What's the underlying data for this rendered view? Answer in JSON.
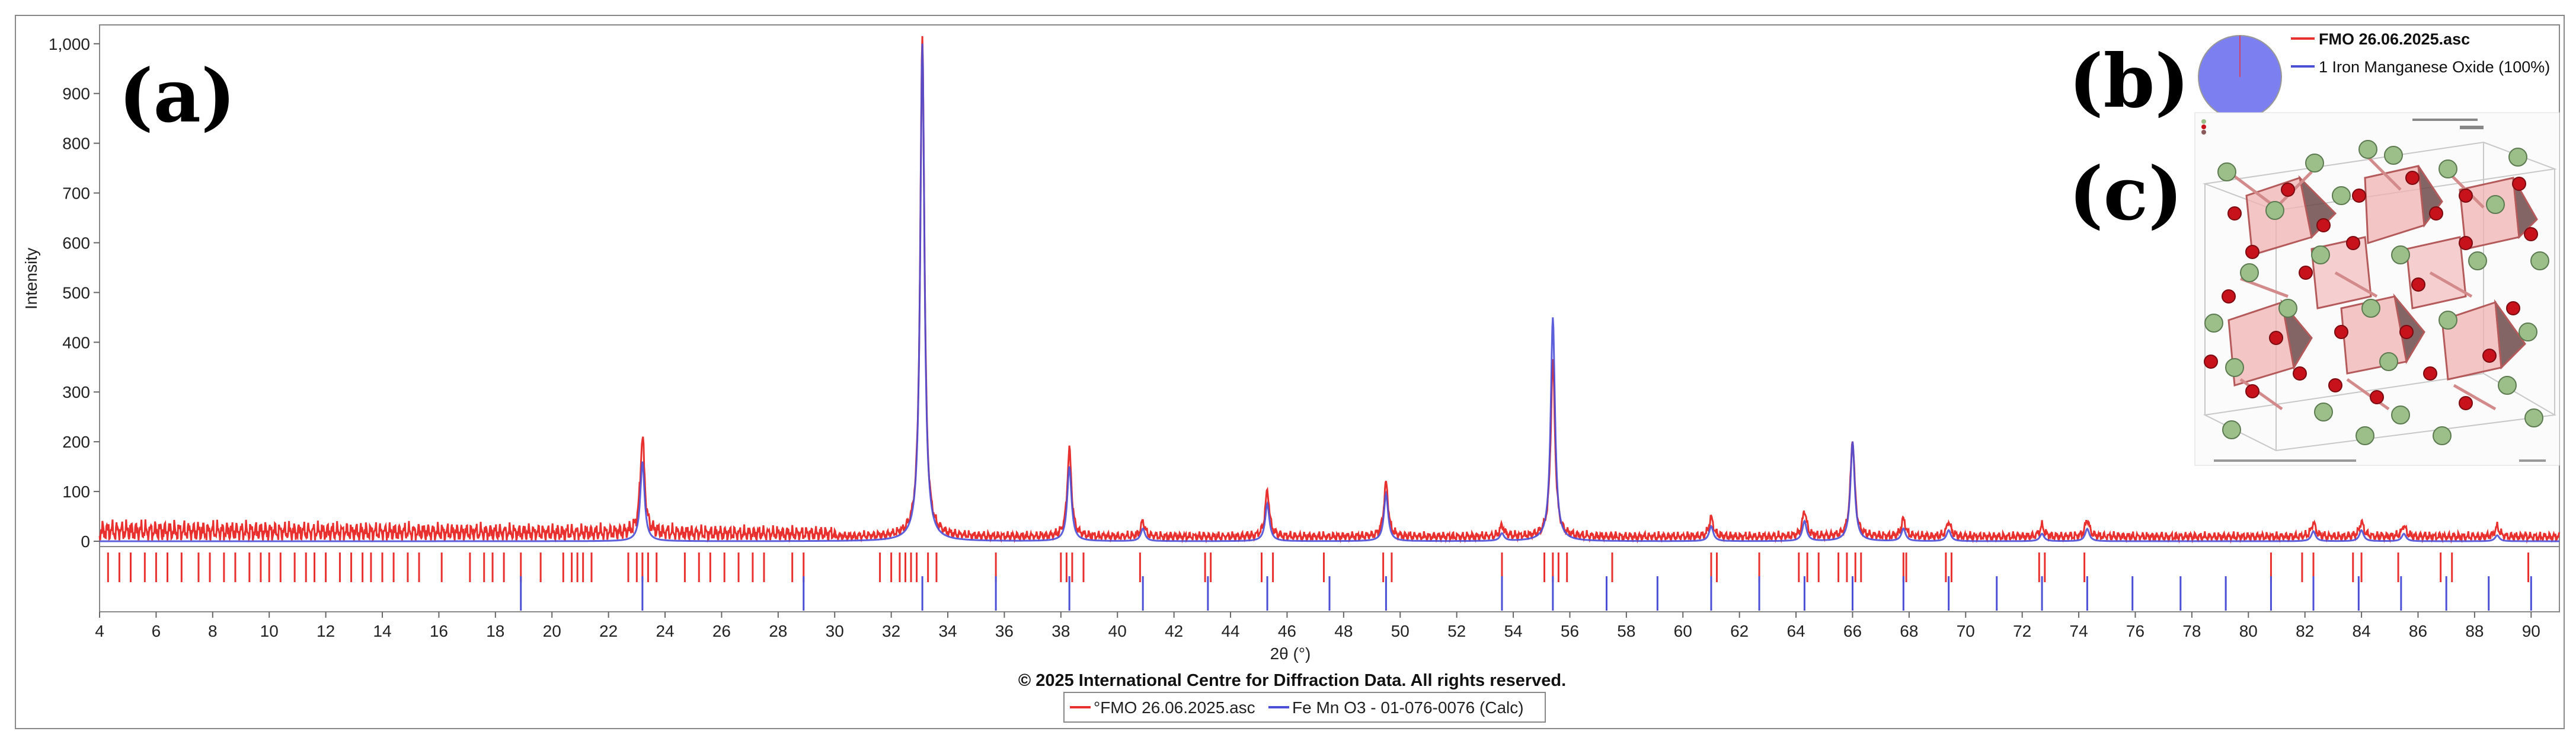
{
  "panel_labels": {
    "a": "(a)",
    "b": "(b)",
    "c": "(c)"
  },
  "copyright": "© 2025 International Centre for Diffraction Data. All rights reserved.",
  "bottom_legend": [
    {
      "label": "°FMO 26.06.2025.asc",
      "color": "#e8312f"
    },
    {
      "label": "Fe Mn O3 - 01-076-0076 (Calc)",
      "color": "#4b4fd6"
    }
  ],
  "inset_legend": [
    {
      "label": "FMO 26.06.2025.asc",
      "color": "#e8312f",
      "bold": true
    },
    {
      "label": "1  Iron Manganese Oxide (100%)",
      "color": "#4b4fd6",
      "bold": false
    }
  ],
  "colors": {
    "observed": "#e8312f",
    "calculated": "#4b4fd6",
    "pie": "#7b7ff0"
  },
  "chart_data": {
    "type": "line",
    "xlabel": "2θ (°)",
    "ylabel": "Intensity",
    "xlim": [
      4,
      91
    ],
    "ylim": [
      0,
      1020
    ],
    "x_ticks": [
      "4",
      "6",
      "8",
      "10",
      "12",
      "14",
      "16",
      "18",
      "20",
      "22",
      "24",
      "26",
      "28",
      "30",
      "32",
      "34",
      "36",
      "38",
      "40",
      "42",
      "44",
      "46",
      "48",
      "50",
      "52",
      "54",
      "56",
      "58",
      "60",
      "62",
      "64",
      "66",
      "68",
      "70",
      "72",
      "74",
      "76",
      "78",
      "80",
      "82",
      "84",
      "86",
      "88",
      "90"
    ],
    "y_ticks": [
      "0",
      "100",
      "200",
      "300",
      "400",
      "500",
      "600",
      "700",
      "800",
      "900",
      "1,000"
    ],
    "grid": false,
    "legend_position": "bottom-center",
    "series": [
      {
        "name": "°FMO 26.06.2025.asc",
        "color": "#e8312f",
        "background": 15,
        "peaks": [
          [
            23.2,
            195
          ],
          [
            33.1,
            1000
          ],
          [
            38.3,
            175
          ],
          [
            40.9,
            30
          ],
          [
            45.3,
            92
          ],
          [
            49.5,
            108
          ],
          [
            53.6,
            22
          ],
          [
            55.4,
            355
          ],
          [
            61.0,
            38
          ],
          [
            64.3,
            52
          ],
          [
            66.0,
            195
          ],
          [
            67.8,
            35
          ],
          [
            69.4,
            30
          ],
          [
            72.7,
            22
          ],
          [
            74.3,
            35
          ],
          [
            82.3,
            28
          ],
          [
            84.0,
            30
          ],
          [
            85.5,
            22
          ],
          [
            88.8,
            20
          ]
        ]
      },
      {
        "name": "Fe Mn O3 - 01-076-0076 (Calc)",
        "color": "#4b4fd6",
        "background": 0,
        "peaks": [
          [
            23.2,
            160
          ],
          [
            33.1,
            1000
          ],
          [
            38.3,
            150
          ],
          [
            40.9,
            25
          ],
          [
            45.3,
            75
          ],
          [
            49.5,
            95
          ],
          [
            53.6,
            15
          ],
          [
            55.4,
            450
          ],
          [
            61.0,
            30
          ],
          [
            64.3,
            40
          ],
          [
            66.0,
            200
          ],
          [
            67.8,
            25
          ],
          [
            69.4,
            22
          ],
          [
            72.7,
            15
          ],
          [
            74.3,
            25
          ],
          [
            82.3,
            20
          ],
          [
            84.0,
            22
          ],
          [
            85.5,
            15
          ],
          [
            88.8,
            12
          ]
        ]
      }
    ],
    "reference_markers": {
      "red": [
        4.3,
        4.7,
        5.1,
        5.6,
        6.0,
        6.4,
        6.9,
        7.5,
        7.9,
        8.4,
        8.8,
        9.3,
        9.7,
        10.0,
        10.4,
        10.9,
        11.3,
        11.6,
        12.0,
        12.5,
        12.9,
        13.3,
        13.6,
        14.0,
        14.4,
        14.9,
        15.3,
        16.1,
        17.1,
        17.6,
        17.9,
        18.3,
        18.9,
        19.6,
        20.4,
        20.7,
        20.9,
        21.1,
        21.4,
        22.7,
        23.0,
        23.2,
        23.4,
        23.7,
        24.7,
        25.2,
        25.6,
        26.1,
        26.6,
        27.1,
        27.5,
        28.5,
        28.9,
        31.6,
        32.0,
        32.3,
        32.5,
        32.7,
        32.9,
        33.3,
        33.6,
        35.7,
        38.0,
        38.2,
        38.4,
        38.8,
        40.8,
        43.1,
        43.3,
        45.1,
        45.5,
        47.3,
        49.4,
        49.7,
        53.6,
        55.1,
        55.4,
        55.6,
        55.9,
        57.5,
        61.0,
        61.2,
        62.7,
        64.1,
        64.4,
        64.8,
        65.5,
        65.8,
        66.1,
        66.3,
        67.8,
        67.9,
        69.3,
        69.5,
        72.6,
        72.8,
        74.2,
        80.8,
        81.9,
        82.3,
        83.7,
        84.0,
        85.3,
        86.8,
        87.2,
        89.9
      ],
      "blue": [
        18.9,
        23.2,
        28.9,
        33.1,
        35.7,
        38.3,
        40.9,
        43.2,
        45.3,
        47.5,
        49.5,
        53.6,
        55.4,
        57.3,
        59.1,
        61.0,
        62.7,
        64.3,
        66.0,
        67.8,
        69.4,
        71.1,
        72.7,
        74.3,
        75.9,
        77.6,
        79.2,
        80.8,
        82.3,
        83.9,
        85.4,
        87.0,
        88.5,
        90.0
      ]
    }
  }
}
